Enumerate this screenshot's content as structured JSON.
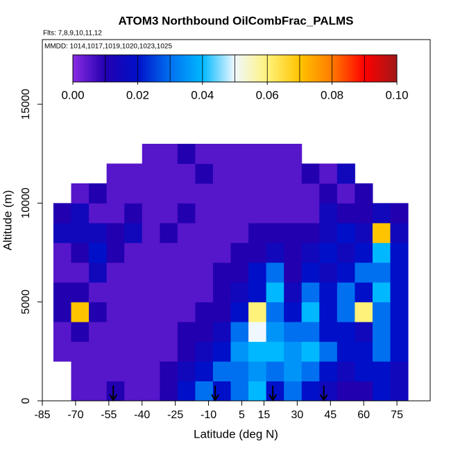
{
  "chart_data": {
    "type": "heatmap",
    "title": "ATOM3 Northbound OilCombFrac_PALMS",
    "subtitle": "Flts: 7,8,9,10,11,12",
    "annotation": "MMDD: 1014,1017,1019,1020,1023,1025",
    "xlabel": "Latitude (deg N)",
    "ylabel": "Altitude (m)",
    "xlim": [
      -85,
      90
    ],
    "ylim": [
      0,
      18270
    ],
    "xticks": [
      -85,
      -70,
      -55,
      -40,
      -25,
      -10,
      5,
      15,
      30,
      45,
      60,
      75
    ],
    "yticks": [
      0,
      5000,
      10000,
      15000
    ],
    "x_edges": [
      -80,
      -72,
      -64,
      -56,
      -48,
      -40,
      -32,
      -24,
      -16,
      -8,
      0,
      8,
      16,
      24,
      32,
      40,
      48,
      56,
      64,
      72,
      80
    ],
    "y_edges": [
      0,
      1000,
      2000,
      3000,
      4000,
      5000,
      6000,
      7000,
      8000,
      9000,
      10000,
      11000,
      12000,
      13000
    ],
    "z": [
      [
        null,
        0.005,
        0.005,
        0.01,
        0.005,
        0.005,
        0.01,
        0.02,
        0.03,
        0.02,
        0.03,
        0.04,
        0.02,
        0.03,
        0.02,
        0.015,
        0.01,
        0.01,
        0.02,
        0.015
      ],
      [
        null,
        0.005,
        0.005,
        0.005,
        0.005,
        0.005,
        0.01,
        0.015,
        0.02,
        0.03,
        0.03,
        0.035,
        0.03,
        0.035,
        0.03,
        0.02,
        0.015,
        0.02,
        0.02,
        0.015
      ],
      [
        0.005,
        0.005,
        0.005,
        0.005,
        0.005,
        0.005,
        0.005,
        0.01,
        0.015,
        0.02,
        0.035,
        0.04,
        0.04,
        0.035,
        0.04,
        0.03,
        0.02,
        0.02,
        0.03,
        0.02
      ],
      [
        0.005,
        0.01,
        0.005,
        0.005,
        0.005,
        0.005,
        0.005,
        0.01,
        0.01,
        0.015,
        0.03,
        0.05,
        0.035,
        0.03,
        0.03,
        0.02,
        0.02,
        0.015,
        0.03,
        0.02
      ],
      [
        0.01,
        0.07,
        0.01,
        0.005,
        0.005,
        0.005,
        0.005,
        0.005,
        0.01,
        0.01,
        0.02,
        0.06,
        0.03,
        0.02,
        0.04,
        0.02,
        0.03,
        0.06,
        0.03,
        0.02
      ],
      [
        0.01,
        0.01,
        0.005,
        0.005,
        0.005,
        0.005,
        0.005,
        0.005,
        0.005,
        0.01,
        0.015,
        0.02,
        0.04,
        0.015,
        0.03,
        0.02,
        0.03,
        0.02,
        0.04,
        0.02
      ],
      [
        0.005,
        0.005,
        0.015,
        0.005,
        0.005,
        0.005,
        0.005,
        0.005,
        0.005,
        0.01,
        0.01,
        0.02,
        0.03,
        0.01,
        0.02,
        0.015,
        0.02,
        0.03,
        0.03,
        0.02
      ],
      [
        0.005,
        0.01,
        0.02,
        0.01,
        0.005,
        0.005,
        0.005,
        0.005,
        0.005,
        0.005,
        0.01,
        0.01,
        0.015,
        0.01,
        0.015,
        0.02,
        0.015,
        0.02,
        0.04,
        0.02
      ],
      [
        0.015,
        0.015,
        0.015,
        0.01,
        0.015,
        0.005,
        0.01,
        0.005,
        0.005,
        0.005,
        0.005,
        0.01,
        0.01,
        0.01,
        0.01,
        0.015,
        0.02,
        0.015,
        0.07,
        0.015
      ],
      [
        0.01,
        0.015,
        0.005,
        0.005,
        0.01,
        0.005,
        0.005,
        0.01,
        0.005,
        0.005,
        0.005,
        0.005,
        0.005,
        0.005,
        0.005,
        0.015,
        0.01,
        0.01,
        0.015,
        0.01
      ],
      [
        null,
        0.005,
        0.01,
        0.005,
        0.005,
        0.005,
        0.005,
        0.005,
        0.005,
        0.005,
        0.005,
        0.005,
        0.005,
        0.005,
        0.005,
        0.01,
        0.005,
        0.01,
        null,
        null
      ],
      [
        null,
        null,
        null,
        0.005,
        0.005,
        0.005,
        0.005,
        0.005,
        0.01,
        0.005,
        0.005,
        0.005,
        0.005,
        0.005,
        0.01,
        0.005,
        0.015,
        null,
        null,
        null
      ],
      [
        null,
        null,
        null,
        null,
        null,
        0.005,
        0.005,
        0.01,
        0.005,
        0.005,
        0.005,
        0.005,
        0.005,
        0.005,
        null,
        null,
        null,
        null,
        null,
        null
      ]
    ],
    "zlim": [
      0,
      0.1
    ],
    "zticks": [
      {
        "value": 0,
        "label": "0.00"
      },
      {
        "value": 0.02,
        "label": "0.02"
      },
      {
        "value": 0.04,
        "label": "0.04"
      },
      {
        "value": 0.06,
        "label": "0.06"
      },
      {
        "value": 0.08,
        "label": "0.08"
      },
      {
        "value": 0.1,
        "label": "0.10"
      }
    ],
    "colormap": [
      "#8a2be2",
      "#2200b0",
      "#0010c8",
      "#0070f0",
      "#00b8ff",
      "#f0f8ff",
      "#fff27a",
      "#ffc400",
      "#ff7a00",
      "#ff0000",
      "#a01818"
    ],
    "arrow_x": [
      -53,
      -7,
      19,
      42
    ]
  }
}
